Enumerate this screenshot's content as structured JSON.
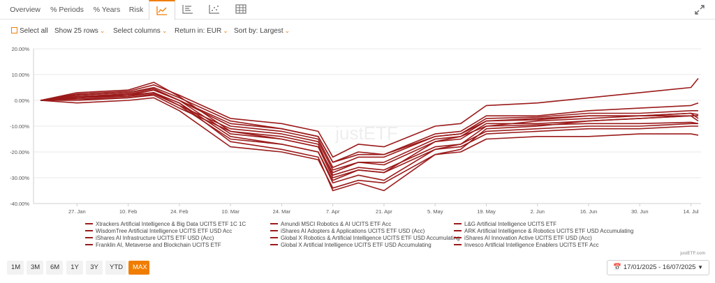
{
  "tabs": [
    {
      "label": "Overview",
      "icon": null
    },
    {
      "label": "% Periods",
      "icon": null
    },
    {
      "label": "% Years",
      "icon": null
    },
    {
      "label": "Risk",
      "icon": null
    },
    {
      "label": "",
      "icon": "line-chart-icon"
    },
    {
      "label": "",
      "icon": "bar-list-icon"
    },
    {
      "label": "",
      "icon": "scatter-icon"
    },
    {
      "label": "",
      "icon": "table-icon"
    }
  ],
  "toolbar": {
    "select_all": "Select all",
    "show_rows": "Show 25 rows",
    "select_columns": "Select columns",
    "return_in": "Return in: EUR",
    "sort_by": "Sort by: Largest"
  },
  "watermark": "justETF",
  "credit": "justETF.com",
  "ranges": [
    "1M",
    "3M",
    "6M",
    "1Y",
    "3Y",
    "YTD",
    "MAX"
  ],
  "active_range": "MAX",
  "date_range": "17/01/2025 - 16/07/2025",
  "colors": {
    "accent": "#f07d00",
    "line": "#9b1a1a",
    "grid": "#e8e8e8"
  },
  "chart_data": {
    "type": "line",
    "y_tick_labels": [
      "20.00%",
      "10.00%",
      "0.00%",
      "-10.00%",
      "-20.00%",
      "-30.00%",
      "-40.00%"
    ],
    "ylim": [
      -40,
      20
    ],
    "x_tick_labels": [
      "27. Jan",
      "10. Feb",
      "24. Feb",
      "10. Mar",
      "24. Mar",
      "7. Apr",
      "21. Apr",
      "5. May",
      "19. May",
      "2. Jun",
      "16. Jun",
      "30. Jun",
      "14. Jul"
    ],
    "x": [
      "17. Jan",
      "27. Jan",
      "10. Feb",
      "17. Feb",
      "24. Feb",
      "10. Mar",
      "24. Mar",
      "3. Apr",
      "7. Apr",
      "14. Apr",
      "21. Apr",
      "5. May",
      "12. May",
      "19. May",
      "2. Jun",
      "16. Jun",
      "30. Jun",
      "14. Jul",
      "16. Jul"
    ],
    "grid": true,
    "legend": "bottom",
    "series": [
      {
        "name": "Xtrackers Artificial Intelligence & Big Data UCITS ETF 1C 1C",
        "values": [
          0,
          2.5,
          3.5,
          6,
          2,
          -7,
          -9,
          -12,
          -22,
          -17,
          -18,
          -10,
          -9,
          -2,
          -1,
          1,
          3,
          5,
          8.5
        ]
      },
      {
        "name": "Amundi MSCI Robotics & AI UCITS ETF Acc",
        "values": [
          0,
          2,
          3,
          5,
          1,
          -8,
          -11,
          -14,
          -24,
          -20,
          -21,
          -13,
          -12,
          -6,
          -6,
          -4,
          -3,
          -2,
          -1
        ]
      },
      {
        "name": "L&G Artificial Intelligence UCITS ETF",
        "values": [
          0,
          2,
          3,
          4.5,
          0,
          -10,
          -12,
          -15,
          -26,
          -22,
          -22,
          -14,
          -13,
          -7,
          -6.5,
          -5,
          -5,
          -4,
          -4
        ]
      },
      {
        "name": "WisdomTree Artificial Intelligence UCITS ETF USD Acc",
        "values": [
          0,
          1,
          2,
          3,
          -1,
          -14,
          -17,
          -20,
          -32,
          -29,
          -31,
          -19,
          -17,
          -10,
          -8,
          -7,
          -6,
          -6,
          -6
        ]
      },
      {
        "name": "iShares AI Adopters & Applications UCITS ETF USD (Acc)",
        "values": [
          0,
          1.5,
          2.5,
          4,
          0,
          -9,
          -11,
          -14,
          -24,
          -21,
          -21,
          -14,
          -13,
          -8,
          -7.5,
          -6,
          -6,
          -5,
          -5.5
        ]
      },
      {
        "name": "ARK Artificial Intelligence & Robotics UCITS ETF USD Accumulating",
        "values": [
          0,
          3,
          4,
          7,
          1.5,
          -12,
          -15,
          -18,
          -30,
          -27,
          -28,
          -16,
          -14,
          -8,
          -7,
          -6,
          -6,
          -5,
          -7
        ]
      },
      {
        "name": "iShares AI Infrastructure UCITS ETF USD (Acc)",
        "values": [
          0,
          1.5,
          2,
          3,
          -1,
          -16,
          -19,
          -22,
          -35,
          -32,
          -35,
          -21,
          -19,
          -11,
          -10,
          -8,
          -7,
          -6,
          -6
        ]
      },
      {
        "name": "Global X Robotics & Artificial Intelligence UCITS ETF USD Accumulating",
        "values": [
          0,
          1,
          2,
          4,
          0,
          -13,
          -15,
          -18,
          -28,
          -24,
          -25,
          -16,
          -15,
          -9,
          -9,
          -8,
          -7,
          -6,
          -8
        ]
      },
      {
        "name": "iShares AI Innovation Active UCITS ETF USD (Acc)",
        "values": [
          0,
          1,
          1.5,
          3,
          -2,
          -11,
          -13,
          -16,
          -27,
          -24,
          -24,
          -15,
          -14,
          -10,
          -9.5,
          -9,
          -9,
          -8.5,
          -9
        ]
      },
      {
        "name": "Franklin AI, Metaverse and Blockchain UCITS ETF",
        "values": [
          0,
          0,
          1,
          2,
          -3,
          -12,
          -14,
          -17,
          -29,
          -26,
          -27,
          -18,
          -17,
          -12,
          -11,
          -10,
          -10,
          -9,
          -9
        ]
      },
      {
        "name": "Global X Artificial Intelligence UCITS ETF USD Accumulating",
        "values": [
          0,
          0.5,
          1,
          2.5,
          -2,
          -15,
          -17,
          -20,
          -31,
          -27,
          -28,
          -19,
          -18,
          -13,
          -12,
          -11,
          -11,
          -10,
          -10
        ]
      },
      {
        "name": "Invesco Artificial Intelligence Enablers UCITS ETF Acc",
        "values": [
          0,
          -1,
          0,
          1,
          -4,
          -18,
          -20,
          -23,
          -34,
          -31,
          -32,
          -21,
          -20,
          -15,
          -14,
          -14,
          -13,
          -13,
          -13.5
        ]
      }
    ]
  }
}
